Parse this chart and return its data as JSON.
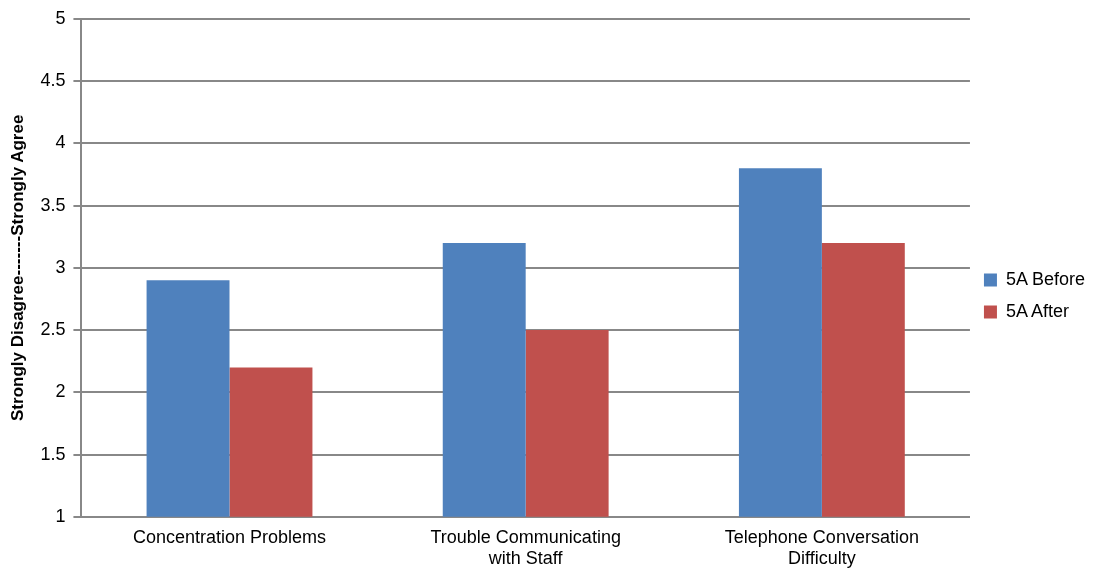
{
  "chart_data": {
    "type": "bar",
    "ylabel": "Strongly Disagree-------Strongly Agree",
    "categories": [
      "Concentration Problems",
      "Trouble Communicating with Staff",
      "Telephone Conversation Difficulty"
    ],
    "series": [
      {
        "name": "5A Before",
        "color": "#4f81bd",
        "values": [
          2.9,
          3.2,
          3.8
        ]
      },
      {
        "name": "5A After",
        "color": "#c0504d",
        "values": [
          2.2,
          2.5,
          3.2
        ]
      }
    ],
    "ylim": [
      1,
      5
    ],
    "yticks": [
      1,
      1.5,
      2,
      2.5,
      3,
      3.5,
      4,
      4.5,
      5
    ],
    "grid": "y",
    "legend": "right"
  }
}
